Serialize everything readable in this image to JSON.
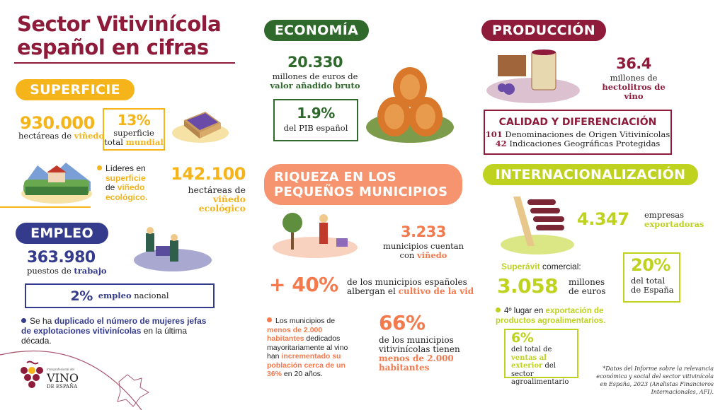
{
  "title": {
    "line1": "Sector Vitivinícola",
    "line2": "español en cifras"
  },
  "colors": {
    "maroon": "#8e1b3a",
    "yellow": "#f4b41a",
    "navy": "#353b8c",
    "green": "#2f6a2c",
    "salmon": "#f5946f",
    "orange": "#f47a4e",
    "lime": "#bed21f"
  },
  "superficie": {
    "label": "SUPERFICIE",
    "hectares": "930.000",
    "hectares_text1": "hectáreas de ",
    "hectares_hl": "viñedo",
    "world_pct": "13%",
    "world_text1": "superficie",
    "world_text2": "total ",
    "world_hl": "mundial",
    "leaders_1": "Líderes en",
    "leaders_hl1": "superficie",
    "leaders_2": "de ",
    "leaders_hl2": "viñedo",
    "leaders_hl3": "ecológico.",
    "eco": "142.100",
    "eco_text1": "hectáreas de",
    "eco_hl": "viñedo ecológico"
  },
  "empleo": {
    "label": "EMPLEO",
    "jobs": "363.980",
    "jobs_text": "puestos de ",
    "jobs_hl": "trabajo",
    "pct": "2%",
    "pct_hl": "empleo",
    "pct_text": " nacional",
    "bullet_1": "Se ha ",
    "bullet_hl": "duplicado el número de mujeres jefas de explotaciones vitivinícolas",
    "bullet_2": " en la última década."
  },
  "logo": {
    "small": "Interprofesional del",
    "main": "VINO",
    "sub": "DE ESPAÑA"
  },
  "economia": {
    "label": "ECONOMÍA",
    "value": "20.330",
    "text1": "millones de euros de",
    "text_hl": "valor añadido bruto",
    "pib_pct": "1.9%",
    "pib_text": "del PIB español"
  },
  "riqueza": {
    "label1": "RIQUEZA EN LOS",
    "label2": "PEQUEÑOS MUNICIPIOS",
    "municipios": "3.233",
    "mun_text1": "municipios cuentan",
    "mun_text2": "con ",
    "mun_hl": "viñedo",
    "plus_pct": "+ 40%",
    "plus_text1": "de los municipios españoles",
    "plus_text2": "albergan el ",
    "plus_hl": "cultivo de la vid",
    "bullet_1": "Los municipios de ",
    "bullet_hl1": "menos de 2.000 habitantes",
    "bullet_2": " dedicados mayoritariamente al vino han ",
    "bullet_hl2": "incrementado su población cerca de un 36%",
    "bullet_3": " en 20 años.",
    "pct66": "66%",
    "pct66_text": "de los municipios vitivinícolas tienen",
    "pct66_hl": "menos de 2.000 habitantes"
  },
  "produccion": {
    "label": "PRODUCCIÓN",
    "value": "36.4",
    "text1": "millones de",
    "text_hl": "hectolitros de vino",
    "quality_title": "CALIDAD Y DIFERENCIACIÓN",
    "do_num": "101",
    "do_text": " Denominaciones de Origen Vitivinícolas",
    "igp_num": "42",
    "igp_text": " Indicaciones Geográficas Protegidas"
  },
  "internacional": {
    "label": "INTERNACIONALIZACIÓN",
    "companies": "4.347",
    "comp_text": "empresas",
    "comp_hl": "exportadoras",
    "surplus_hl": "Superávit",
    "surplus_text": " comercial:",
    "surplus": "3.058",
    "surplus_unit1": "millones",
    "surplus_unit2": "de euros",
    "pct20": "20%",
    "pct20_text1": "del total",
    "pct20_text2": "de España",
    "rank_text": "4º lugar en ",
    "rank_hl": "exportación de productos agroalimentarios.",
    "pct6": "6%",
    "pct6_text1": "del total de ",
    "pct6_hl": "ventas al exterior",
    "pct6_text2": " del sector agroalimentario"
  },
  "footnote": "*Datos del Informe sobre la relevancia económica y social del sector vitivinícola en España, 2023 (Analistas Financieros Internacionales, AFI)."
}
